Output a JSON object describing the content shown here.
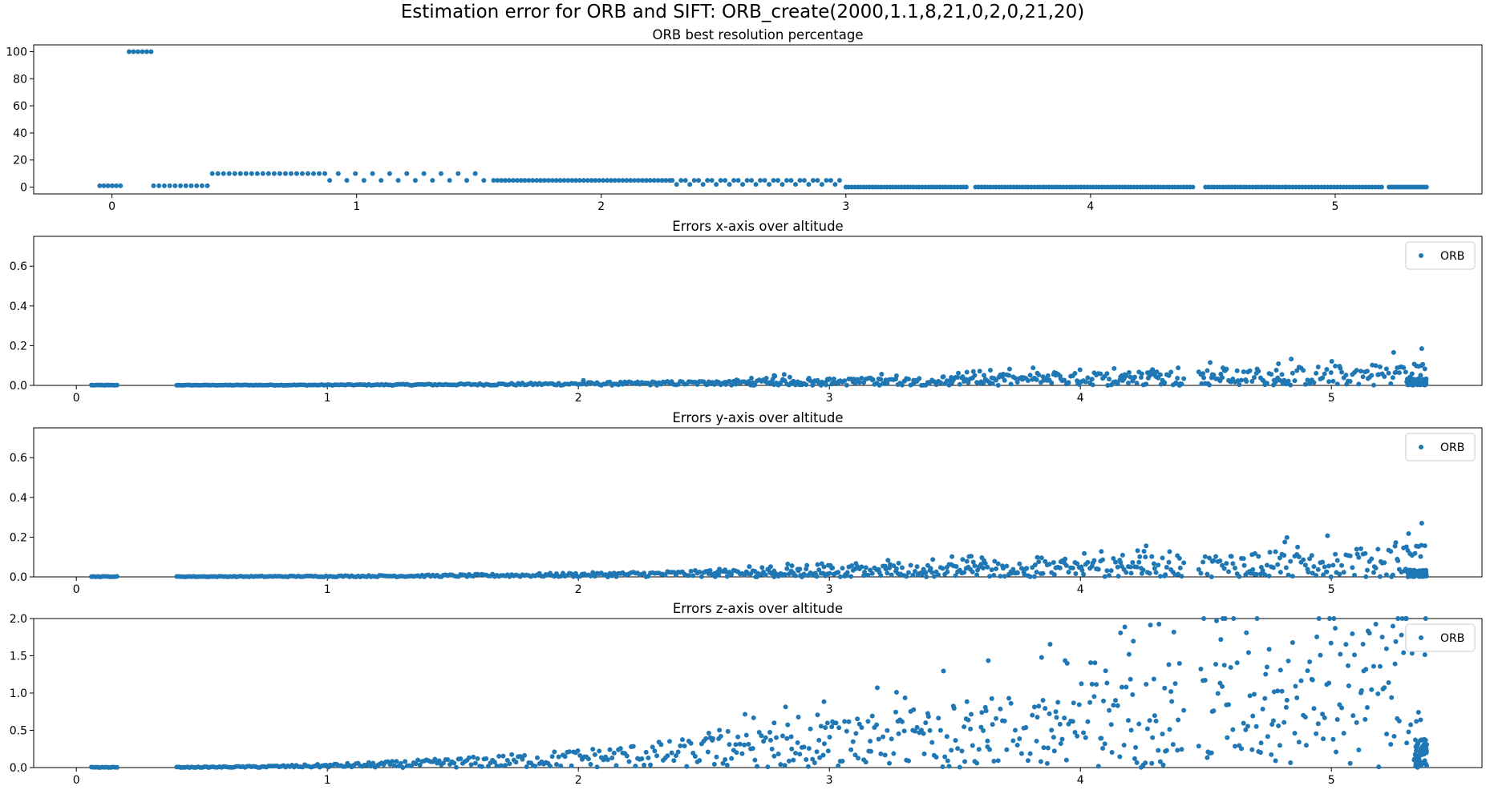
{
  "suptitle": "Estimation error for ORB and SIFT: ORB_create(2000,1.1,8,21,0,2,0,21,20)",
  "colors": {
    "series": "#1f77b4",
    "axis": "#000000",
    "legend_border": "#cccccc"
  },
  "chart_data": [
    {
      "type": "scatter",
      "title": "ORB best resolution percentage",
      "xlim": [
        -0.32,
        5.6
      ],
      "ylim": [
        -5,
        105
      ],
      "xticks": [
        0,
        1,
        2,
        3,
        4,
        5
      ],
      "yticks": [
        0,
        20,
        40,
        60,
        80,
        100
      ],
      "legend": null,
      "segments": [
        {
          "x0": -0.05,
          "x1": 0.05,
          "step": 0.017,
          "y": 1
        },
        {
          "x0": 0.07,
          "x1": 0.16,
          "step": 0.018,
          "y": 100
        },
        {
          "x0": 0.17,
          "x1": 0.4,
          "step": 0.022,
          "y": 1
        },
        {
          "x0": 0.41,
          "x1": 0.88,
          "step": 0.023,
          "y": 10
        },
        {
          "x0": 0.89,
          "x1": 1.55,
          "step": 0.035,
          "y": 5,
          "alt_y": 10,
          "alt_every": 2
        },
        {
          "x0": 1.56,
          "x1": 2.28,
          "step": 0.016,
          "y": 5
        },
        {
          "x0": 2.29,
          "x1": 2.98,
          "step": 0.018,
          "y": 5,
          "alt_y": 2,
          "alt_every": 3
        },
        {
          "x0": 3.0,
          "x1": 3.5,
          "step": 0.012,
          "y": 0
        },
        {
          "x0": 3.53,
          "x1": 4.42,
          "step": 0.012,
          "y": 0
        },
        {
          "x0": 4.47,
          "x1": 4.8,
          "step": 0.012,
          "y": 0
        },
        {
          "x0": 4.8,
          "x1": 5.2,
          "step": 0.013,
          "y": 0
        },
        {
          "x0": 5.22,
          "x1": 5.38,
          "step": 0.009,
          "y": 0
        }
      ]
    },
    {
      "type": "scatter",
      "title": "Errors x-axis over altitude",
      "xlim": [
        -0.17,
        5.6
      ],
      "ylim": [
        0,
        0.75
      ],
      "xticks": [
        0,
        1,
        2,
        3,
        4,
        5
      ],
      "yticks": [
        0.0,
        0.2,
        0.4,
        0.6
      ],
      "legend": "ORB",
      "legend_loc": "top-right",
      "noise_growth": 0.0032,
      "noise_base": 0.0015,
      "gaps": [
        [
          0.17,
          0.4
        ],
        [
          4.42,
          4.47
        ]
      ],
      "x_range": [
        0.06,
        5.38
      ],
      "dense_cluster": {
        "x0": 5.3,
        "x1": 5.38,
        "ymax": 0.035
      },
      "outliers": [
        [
          5.36,
          0.185
        ],
        [
          2.78,
          0.05
        ],
        [
          2.82,
          0.055
        ],
        [
          2.02,
          0.025
        ],
        [
          2.6,
          0.02
        ],
        [
          3.3,
          0.022
        ],
        [
          5.33,
          0.03
        ]
      ]
    },
    {
      "type": "scatter",
      "title": "Errors y-axis over altitude",
      "xlim": [
        -0.17,
        5.6
      ],
      "ylim": [
        0,
        0.75
      ],
      "xticks": [
        0,
        1,
        2,
        3,
        4,
        5
      ],
      "yticks": [
        0.0,
        0.2,
        0.4,
        0.6
      ],
      "legend": "ORB",
      "legend_loc": "top-right",
      "noise_growth": 0.0045,
      "noise_base": 0.002,
      "gaps": [
        [
          0.17,
          0.4
        ],
        [
          4.42,
          4.47
        ]
      ],
      "x_range": [
        0.06,
        5.38
      ],
      "dense_cluster": {
        "x0": 5.3,
        "x1": 5.38,
        "ymax": 0.035
      },
      "outliers": [
        [
          5.36,
          0.27
        ],
        [
          2.78,
          0.03
        ],
        [
          3.47,
          0.025
        ],
        [
          4.98,
          0.025
        ],
        [
          5.02,
          0.022
        ],
        [
          3.75,
          0.02
        ]
      ]
    },
    {
      "type": "scatter",
      "title": "Errors z-axis over altitude",
      "xlim": [
        -0.17,
        5.6
      ],
      "ylim": [
        0,
        2.0
      ],
      "xticks": [
        0,
        1,
        2,
        3,
        4,
        5
      ],
      "yticks": [
        0.0,
        0.5,
        1.0,
        1.5,
        2.0
      ],
      "legend": "ORB",
      "legend_loc": "top-right",
      "noise_growth": 0.06,
      "noise_base": 0.005,
      "gaps": [
        [
          0.17,
          0.4
        ],
        [
          4.42,
          4.47
        ]
      ],
      "x_range": [
        0.06,
        5.38
      ],
      "dense_cluster": {
        "x0": 5.33,
        "x1": 5.38,
        "ymax": 0.38
      },
      "outliers": [
        [
          2.78,
          0.6
        ],
        [
          2.85,
          0.25
        ],
        [
          2.98,
          0.32
        ],
        [
          5.22,
          0.45
        ],
        [
          5.25,
          0.42
        ],
        [
          5.3,
          0.33
        ],
        [
          4.72,
          0.33
        ],
        [
          4.9,
          0.3
        ],
        [
          3.63,
          0.28
        ],
        [
          4.22,
          0.27
        ]
      ]
    }
  ]
}
